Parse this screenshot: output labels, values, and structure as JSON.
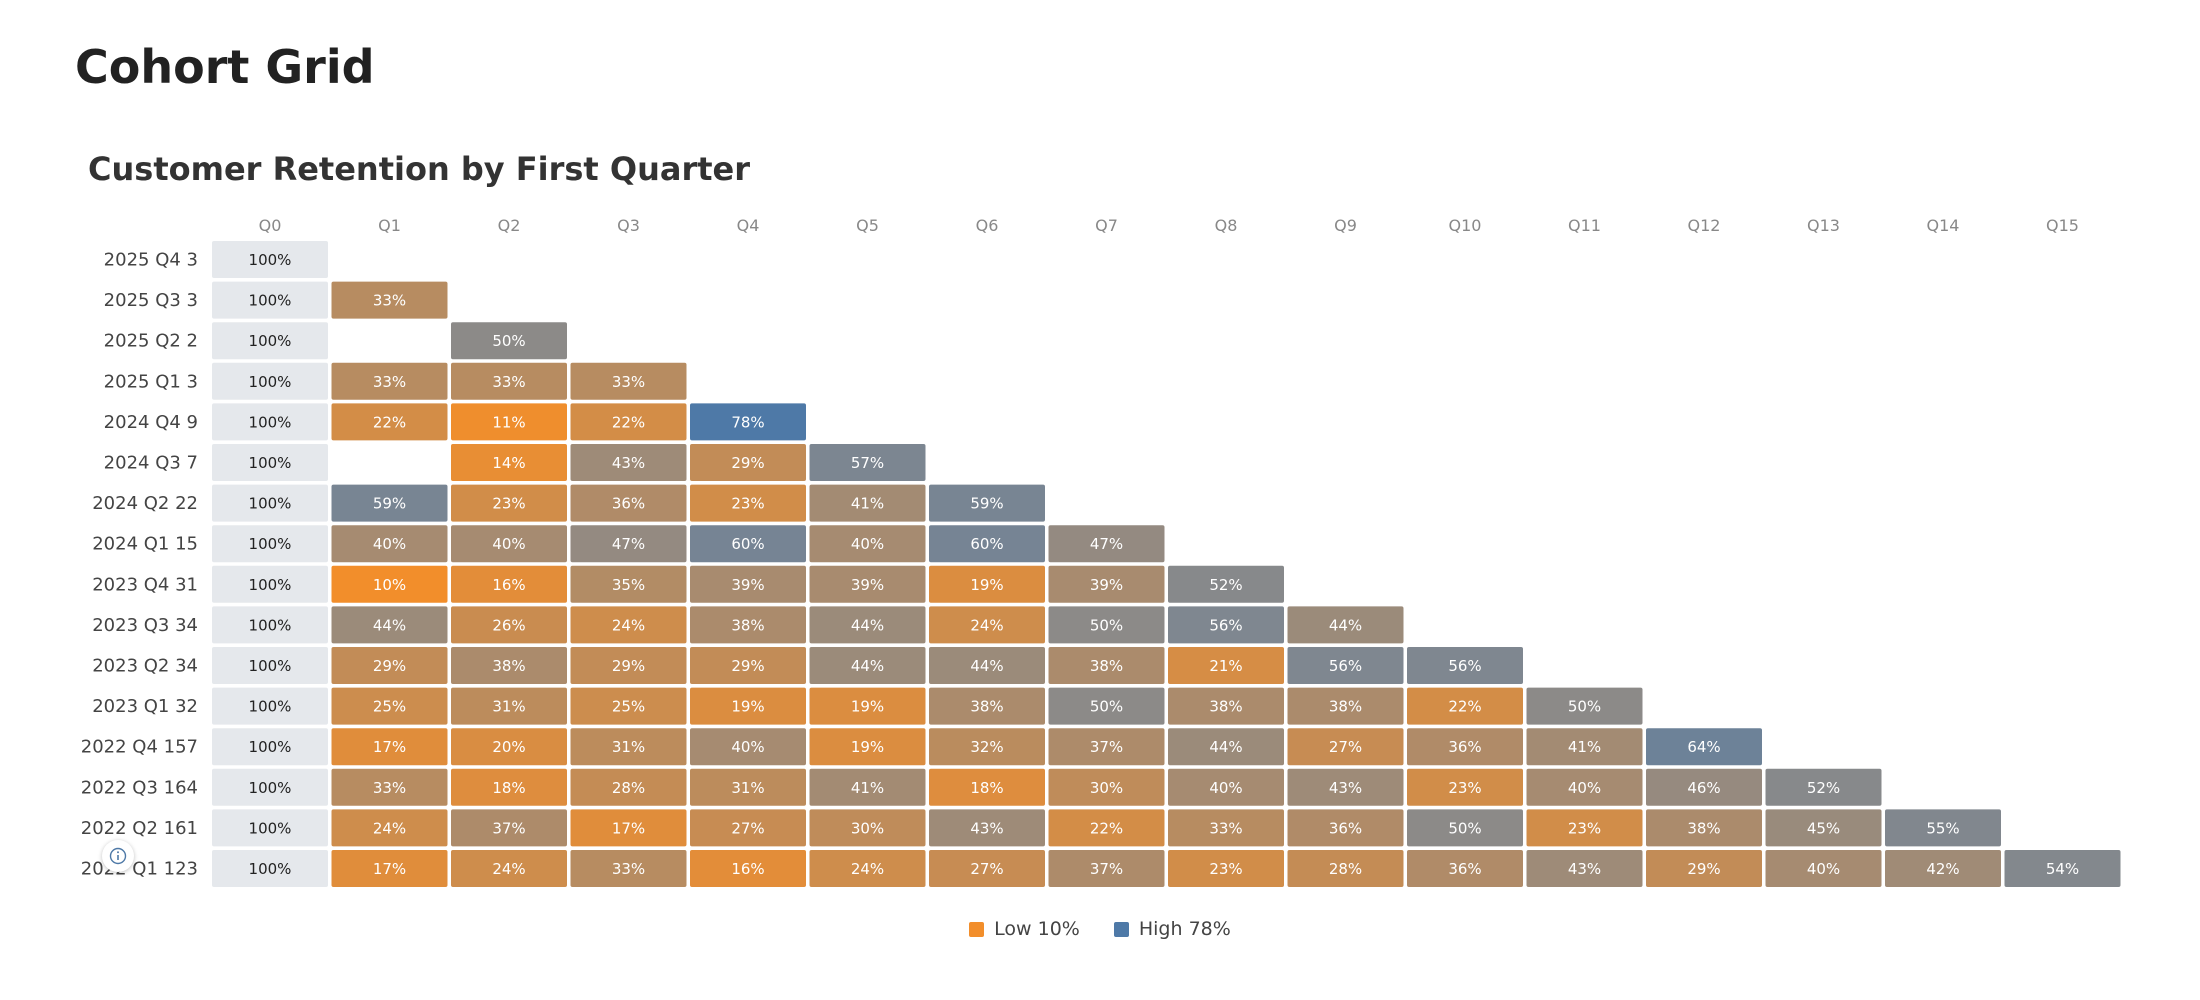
{
  "page": {
    "title": "Cohort Grid"
  },
  "legend": {
    "low_label": "Low 10%",
    "high_label": "High 78%",
    "low_color": "#f28e2b",
    "high_color": "#4e79a7"
  },
  "colors": {
    "base_cell": "#e5e8ec",
    "base_text": "#222222",
    "value_text": "#ffffff",
    "mid_color": "#8a8a8a"
  },
  "icons": {
    "info": "info-circle-icon"
  },
  "chart_data": {
    "type": "heatmap",
    "title": "Customer Retention by First Quarter",
    "xlabel": "",
    "ylabel": "",
    "columns": [
      "Q0",
      "Q1",
      "Q2",
      "Q3",
      "Q4",
      "Q5",
      "Q6",
      "Q7",
      "Q8",
      "Q9",
      "Q10",
      "Q11",
      "Q12",
      "Q13",
      "Q14",
      "Q15"
    ],
    "rows": [
      {
        "label": "2025 Q4 3",
        "values": [
          100
        ]
      },
      {
        "label": "2025 Q3 3",
        "values": [
          100,
          33
        ]
      },
      {
        "label": "2025 Q2 2",
        "values": [
          100,
          null,
          50
        ]
      },
      {
        "label": "2025 Q1 3",
        "values": [
          100,
          33,
          33,
          33
        ]
      },
      {
        "label": "2024 Q4 9",
        "values": [
          100,
          22,
          11,
          22,
          78
        ]
      },
      {
        "label": "2024 Q3 7",
        "values": [
          100,
          null,
          14,
          43,
          29,
          57
        ]
      },
      {
        "label": "2024 Q2 22",
        "values": [
          100,
          59,
          23,
          36,
          23,
          41,
          59
        ]
      },
      {
        "label": "2024 Q1 15",
        "values": [
          100,
          40,
          40,
          47,
          60,
          40,
          60,
          47
        ]
      },
      {
        "label": "2023 Q4 31",
        "values": [
          100,
          10,
          16,
          35,
          39,
          39,
          19,
          39,
          52
        ]
      },
      {
        "label": "2023 Q3 34",
        "values": [
          100,
          44,
          26,
          24,
          38,
          44,
          24,
          50,
          56,
          44
        ]
      },
      {
        "label": "2023 Q2 34",
        "values": [
          100,
          29,
          38,
          29,
          29,
          44,
          44,
          38,
          21,
          56,
          56
        ]
      },
      {
        "label": "2023 Q1 32",
        "values": [
          100,
          25,
          31,
          25,
          19,
          19,
          38,
          50,
          38,
          38,
          22,
          50
        ]
      },
      {
        "label": "2022 Q4 157",
        "values": [
          100,
          17,
          20,
          31,
          40,
          19,
          32,
          37,
          44,
          27,
          36,
          41,
          64
        ]
      },
      {
        "label": "2022 Q3 164",
        "values": [
          100,
          33,
          18,
          28,
          31,
          41,
          18,
          30,
          40,
          43,
          23,
          40,
          46,
          52
        ]
      },
      {
        "label": "2022 Q2 161",
        "values": [
          100,
          24,
          37,
          17,
          27,
          30,
          43,
          22,
          33,
          36,
          50,
          23,
          38,
          45,
          55
        ]
      },
      {
        "label": "2022 Q1 123",
        "values": [
          100,
          17,
          24,
          33,
          16,
          24,
          27,
          37,
          23,
          28,
          36,
          43,
          29,
          40,
          42,
          54
        ]
      }
    ],
    "value_suffix": "%",
    "color_range": [
      10,
      78
    ],
    "legend_position": "bottom-center"
  }
}
